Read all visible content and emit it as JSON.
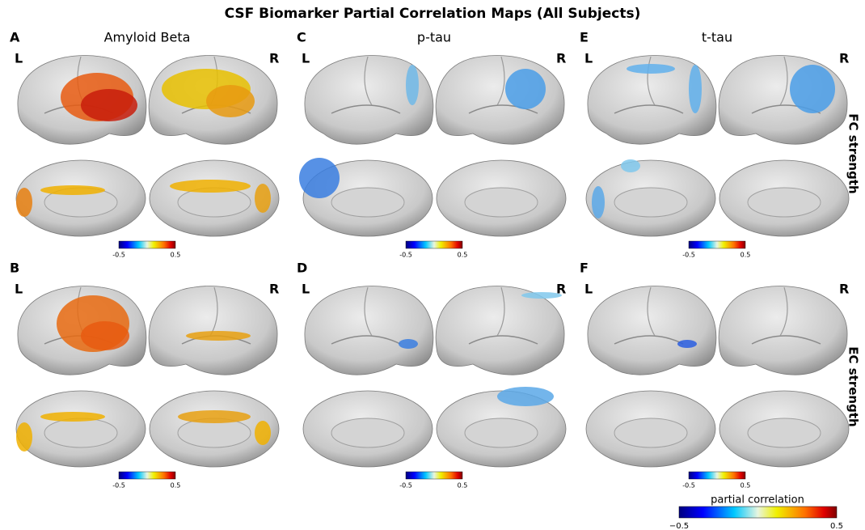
{
  "title": "CSF Biomarker Partial Correlation Maps (All Subjects)",
  "columns": [
    "Amyloid Beta",
    "p-tau",
    "t-tau"
  ],
  "rows": [
    "FC strength",
    "EC strength"
  ],
  "panels": [
    {
      "letter": "A",
      "left": "L",
      "right": "R",
      "scale_min": "-0.5",
      "scale_max": "0.5"
    },
    {
      "letter": "C",
      "left": "L",
      "right": "R",
      "scale_min": "-0.5",
      "scale_max": "0.5"
    },
    {
      "letter": "E",
      "left": "L",
      "right": "R",
      "scale_min": "-0.5",
      "scale_max": "0.5"
    },
    {
      "letter": "B",
      "left": "L",
      "right": "R",
      "scale_min": "-0.5",
      "scale_max": "0.5"
    },
    {
      "letter": "D",
      "left": "L",
      "right": "R",
      "scale_min": "-0.5",
      "scale_max": "0.5"
    },
    {
      "letter": "F",
      "left": "L",
      "right": "R",
      "scale_min": "-0.5",
      "scale_max": "0.5"
    }
  ],
  "colorbar": {
    "label": "partial correlation",
    "min": "−0.5",
    "max": "0.5"
  }
}
